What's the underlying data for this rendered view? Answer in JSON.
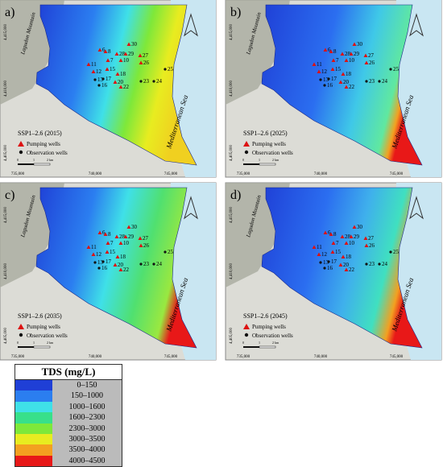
{
  "panels": [
    {
      "label": "a)",
      "title": "SSP1–2.6 (2015)"
    },
    {
      "label": "b)",
      "title": "SSP1–2.6 (2025)"
    },
    {
      "label": "c)",
      "title": "SSP1–2.6 (2035)"
    },
    {
      "label": "d)",
      "title": "SSP1–2.6 (2045)"
    }
  ],
  "map_text": {
    "mountain": "Lagudon Mountain",
    "sea": "Mediterranean Sea",
    "pumping": "Pumping wells",
    "observation": "Observation wells",
    "northings": [
      "4,415,000",
      "4,410,000",
      "4,405,000"
    ],
    "eastings": [
      "735,000",
      "740,000",
      "745,000"
    ],
    "scale": [
      "0",
      "1",
      "2 km"
    ]
  },
  "wells": [
    "30",
    "28",
    "29",
    "10",
    "27",
    "26",
    "25",
    "6",
    "8",
    "11",
    "7",
    "12",
    "15",
    "18",
    "13",
    "17",
    "16",
    "20",
    "22",
    "23",
    "24"
  ],
  "legend": {
    "title": "TDS (mg/L)",
    "items": [
      {
        "label": "0–150",
        "color": "#1f3fd6"
      },
      {
        "label": "150–1000",
        "color": "#2b7ef0"
      },
      {
        "label": "1000–1600",
        "color": "#3fe0e8"
      },
      {
        "label": "1600–2300",
        "color": "#38e08a"
      },
      {
        "label": "2300–3000",
        "color": "#7ee83a"
      },
      {
        "label": "3000–3500",
        "color": "#e8ec20"
      },
      {
        "label": "3500–4000",
        "color": "#f3a020"
      },
      {
        "label": "4000–4500",
        "color": "#e81818"
      }
    ]
  }
}
